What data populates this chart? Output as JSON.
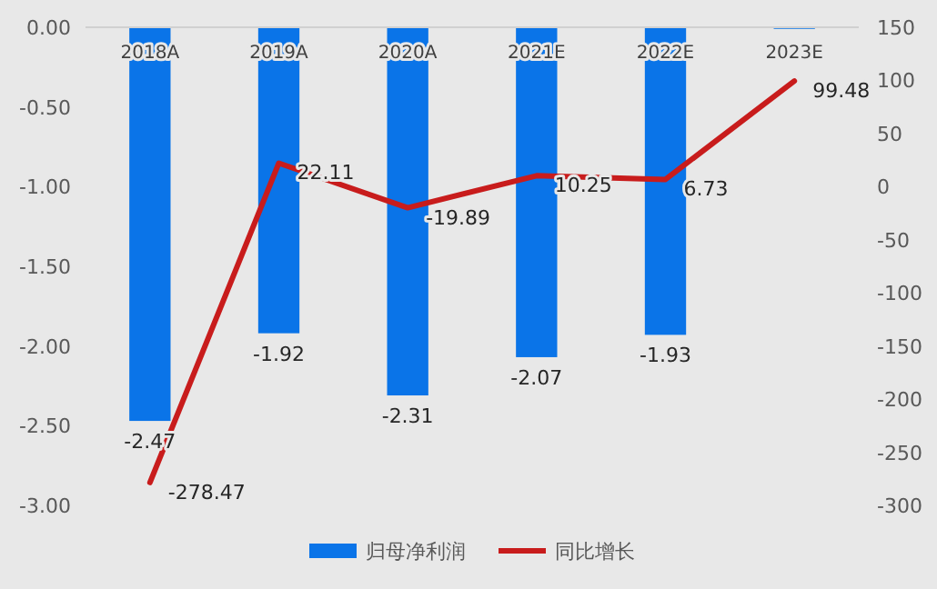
{
  "chart_data": {
    "type": "bar",
    "categories": [
      "2018A",
      "2019A",
      "2020A",
      "2021E",
      "2022E",
      "2023E"
    ],
    "series": [
      {
        "name": "归母净利润",
        "color": "#0a74e8",
        "values": [
          -2.47,
          -1.92,
          -2.31,
          -2.07,
          -1.93,
          -0.01
        ],
        "value_labels": [
          "-2.47",
          "-1.92",
          "-2.31",
          "-2.07",
          "-1.93",
          null
        ]
      },
      {
        "name": "同比增长",
        "type": "line",
        "axis": "y2",
        "color": "#c81c1c",
        "values": [
          -278.47,
          22.11,
          -19.89,
          10.25,
          6.73,
          99.48
        ],
        "value_labels": [
          "-278.47",
          "22.11",
          "-19.89",
          "10.25",
          "6.73",
          "99.48"
        ]
      }
    ],
    "ylim": [
      -3,
      0
    ],
    "yticks": [
      {
        "value": 0,
        "label": "0.00"
      },
      {
        "value": -0.5,
        "label": "-0.50"
      },
      {
        "value": -1,
        "label": "-1.00"
      },
      {
        "value": -1.5,
        "label": "-1.50"
      },
      {
        "value": -2,
        "label": "-2.00"
      },
      {
        "value": -2.5,
        "label": "-2.50"
      },
      {
        "value": -3,
        "label": "-3.00"
      }
    ],
    "y2lim": [
      -300,
      150
    ],
    "y2ticks": [
      150,
      100,
      50,
      0,
      -50,
      -100,
      -150,
      -200,
      -250,
      -300
    ],
    "legend": "bottom"
  }
}
